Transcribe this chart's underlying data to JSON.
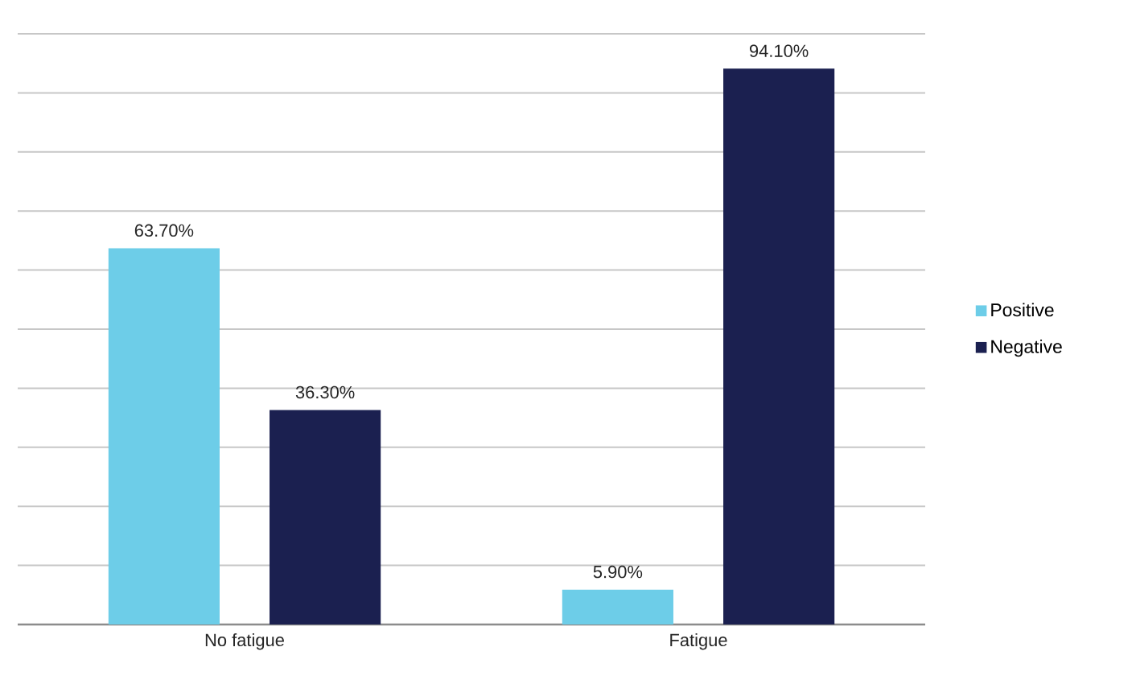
{
  "chart_data": {
    "type": "bar",
    "categories": [
      "No fatigue",
      "Fatigue"
    ],
    "series": [
      {
        "name": "Positive",
        "color": "#6dcde8",
        "values": [
          63.7,
          5.9
        ],
        "value_labels": [
          "63.70%",
          "5.90%"
        ]
      },
      {
        "name": "Negative",
        "color": "#1b2050",
        "values": [
          36.3,
          94.1
        ],
        "value_labels": [
          "36.30%",
          "94.10%"
        ]
      }
    ],
    "ylim": [
      0,
      100
    ],
    "yticks": [
      {
        "value": 0,
        "label": null
      },
      {
        "value": 10,
        "label": null
      },
      {
        "value": 20,
        "label": null
      },
      {
        "value": 30,
        "label": null
      },
      {
        "value": 40,
        "label": null
      },
      {
        "value": 50,
        "label": null
      },
      {
        "value": 60,
        "label": null
      },
      {
        "value": 70,
        "label": null
      },
      {
        "value": 80,
        "label": null
      },
      {
        "value": 90,
        "label": null
      },
      {
        "value": 100,
        "label": null
      }
    ],
    "tick_labels": "x",
    "grid": "y",
    "legend": "right"
  }
}
